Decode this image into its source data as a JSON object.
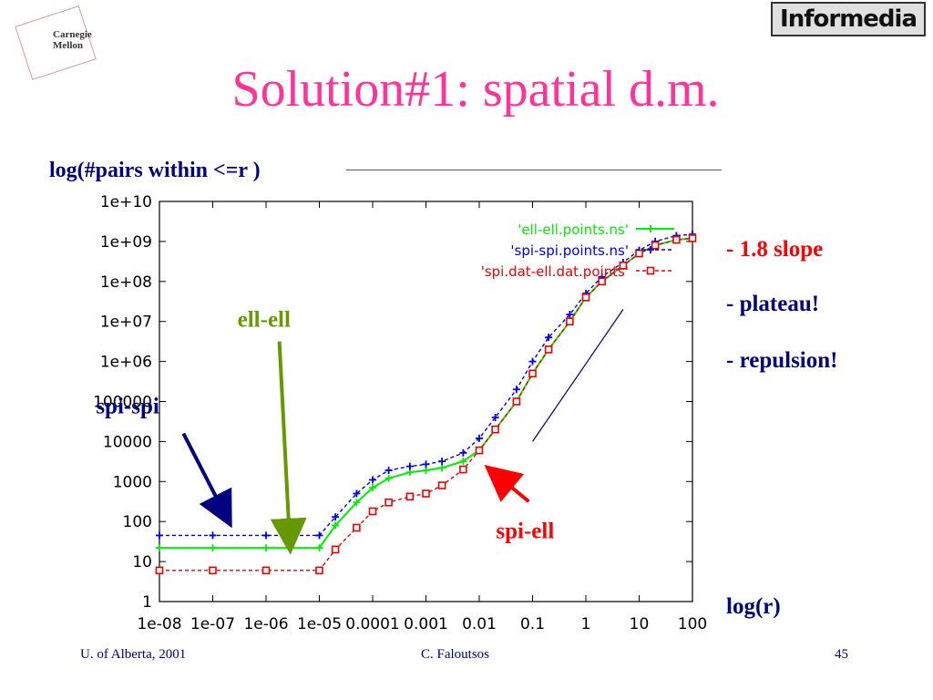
{
  "logos": {
    "cmu_line1": "Carnegie",
    "cmu_line2": "Mellon",
    "informedia": "Informedia"
  },
  "slide": {
    "title": "Solution#1: spatial d.m.",
    "y_axis_label": "log(#pairs within <=r )",
    "x_axis_label": "log(r)",
    "notes": [
      "- 1.8 slope",
      "- plateau!",
      "- repulsion!"
    ],
    "footer": {
      "left": "U. of Alberta, 2001",
      "center": "C. Faloutsos",
      "right": "45"
    }
  },
  "colors": {
    "title": "#ff3399",
    "text": "#000080",
    "accent": "#ff0000"
  },
  "annotations": [
    {
      "text": "ell-ell",
      "color": "#669900",
      "from": [
        -5.75,
        6.5
      ],
      "to": [
        -5.55,
        1.35
      ]
    },
    {
      "text": "spi-spi",
      "color": "#000080",
      "from": [
        -7.55,
        4.2
      ],
      "to": [
        -6.7,
        2.0
      ]
    },
    {
      "text": "spi-ell",
      "color": "#ff0000",
      "from": [
        -1.07,
        2.5
      ],
      "to": [
        -1.8,
        3.3
      ]
    }
  ],
  "chart_data": {
    "type": "line",
    "log_x": true,
    "log_y": true,
    "xlim": [
      1e-08,
      100
    ],
    "ylim": [
      1,
      10000000000.0
    ],
    "x_tick_labels": [
      "1e-08",
      "1e-07",
      "1e-06",
      "1e-05",
      "0.0001",
      "0.001",
      "0.01",
      "0.1",
      "1",
      "10",
      "100"
    ],
    "y_tick_labels": [
      "1",
      "10",
      "100",
      "1000",
      "10000",
      "100000",
      "1e+06",
      "1e+07",
      "1e+08",
      "1e+09",
      "1e+10"
    ],
    "legend_position": "top-right",
    "slope_line": {
      "x": [
        0.1,
        5
      ],
      "y": [
        10000,
        20000000.0
      ]
    },
    "series": [
      {
        "name": "'ell-ell.points.ns'",
        "color": "#00ee00",
        "x": [
          1e-08,
          1e-07,
          1e-06,
          1e-05,
          2e-05,
          5e-05,
          0.0001,
          0.0002,
          0.0005,
          0.001,
          0.002,
          0.005,
          0.01,
          0.02,
          0.05,
          0.1,
          0.2,
          0.5,
          1,
          2,
          5,
          10,
          20,
          50,
          100
        ],
        "y": [
          22,
          22,
          22,
          22,
          80,
          300,
          700,
          1200,
          1700,
          1900,
          2200,
          3200,
          6000,
          20000,
          100000,
          500000,
          2000000,
          10000000,
          40000000,
          100000000,
          250000000,
          500000000,
          800000000,
          1100000000,
          1200000000
        ]
      },
      {
        "name": "'spi-spi.points.ns'",
        "color": "#0000ee",
        "x": [
          1e-08,
          1e-07,
          1e-06,
          1e-05,
          2e-05,
          5e-05,
          0.0001,
          0.0002,
          0.0005,
          0.001,
          0.002,
          0.005,
          0.01,
          0.02,
          0.05,
          0.1,
          0.2,
          0.5,
          1,
          2,
          5,
          10,
          20,
          50,
          100
        ],
        "y": [
          45,
          45,
          45,
          45,
          130,
          500,
          1100,
          1900,
          2400,
          2700,
          3200,
          5200,
          12000,
          40000,
          200000,
          1000000,
          4000000,
          15000000,
          50000000,
          130000000,
          300000000,
          600000000,
          1000000000,
          1400000000,
          1500000000
        ]
      },
      {
        "name": "'spi.dat-ell.dat.points'",
        "color": "#ee0000",
        "x": [
          1e-08,
          1e-07,
          1e-06,
          1e-05,
          2e-05,
          5e-05,
          0.0001,
          0.0002,
          0.0005,
          0.001,
          0.002,
          0.005,
          0.01,
          0.02,
          0.05,
          0.1,
          0.2,
          0.5,
          1,
          2,
          5,
          10,
          20,
          50,
          100
        ],
        "y": [
          6,
          6,
          6,
          6,
          20,
          70,
          180,
          300,
          420,
          500,
          800,
          2000,
          6000,
          20000,
          100000,
          500000,
          2000000,
          10000000,
          40000000,
          100000000,
          250000000,
          500000000,
          800000000,
          1100000000,
          1200000000
        ]
      }
    ]
  }
}
